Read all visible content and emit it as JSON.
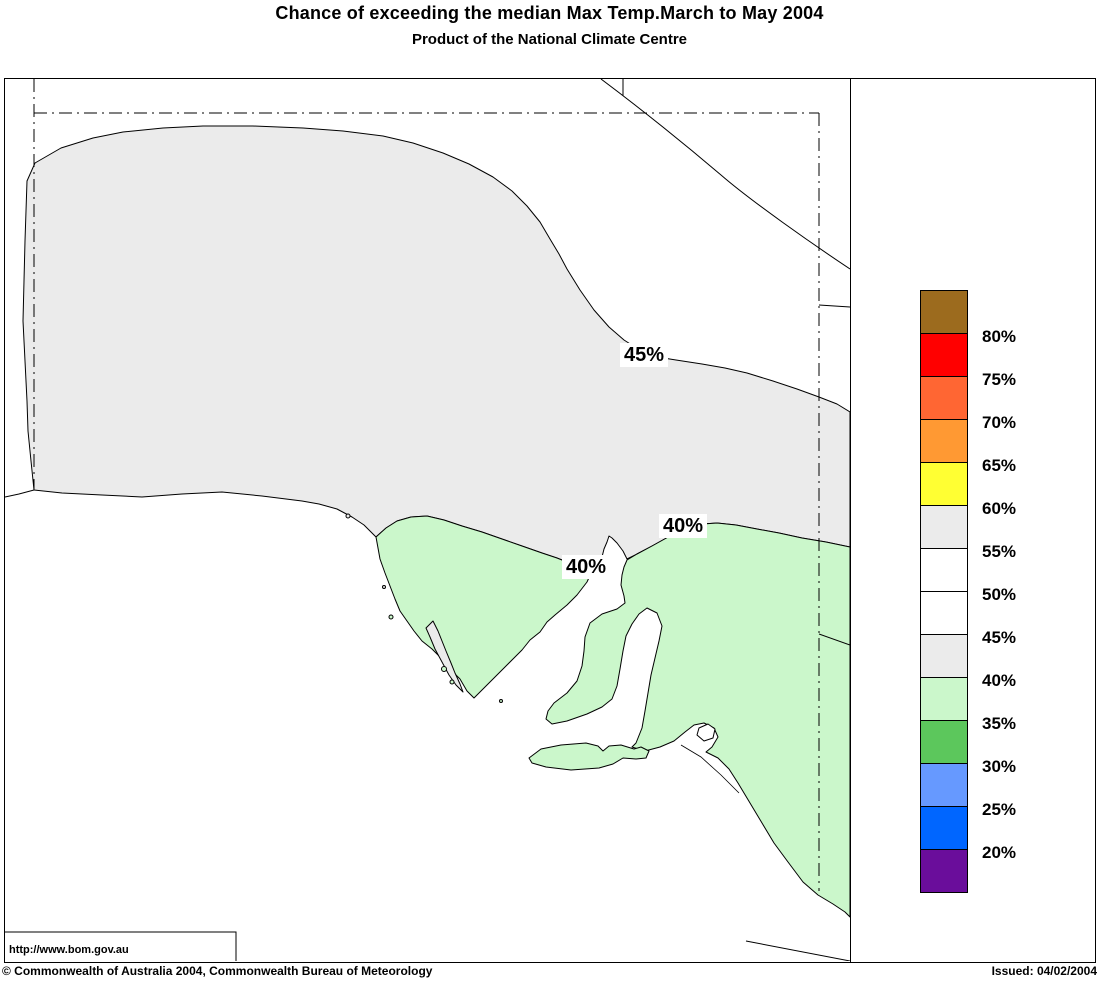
{
  "header": {
    "title": "Chance of exceeding the median Max Temp.March to May 2004",
    "subtitle": "Product of the National Climate Centre"
  },
  "map": {
    "contour_labels": {
      "label_45": "45%",
      "label_40_right": "40%",
      "label_40_left": "40%"
    },
    "url": "http://www.bom.gov.au",
    "region_colors": {
      "band_40_45": "#EBEBEB",
      "band_35_40": "#CBF7CB",
      "sea": "#FFFFFF",
      "coastline": "#000000"
    }
  },
  "legend": {
    "bands": [
      {
        "color": "#9C6B1E",
        "label": "80%"
      },
      {
        "color": "#FF0000",
        "label": "75%"
      },
      {
        "color": "#FF6633",
        "label": "70%"
      },
      {
        "color": "#FF9933",
        "label": "65%"
      },
      {
        "color": "#FFFF33",
        "label": "60%"
      },
      {
        "color": "#EBEBEB",
        "label": "55%"
      },
      {
        "color": "#FFFFFF",
        "label": "50%"
      },
      {
        "color": "#FFFFFF",
        "label": "45%"
      },
      {
        "color": "#EBEBEB",
        "label": "40%"
      },
      {
        "color": "#CBF7CB",
        "label": "35%"
      },
      {
        "color": "#5CC75C",
        "label": "30%"
      },
      {
        "color": "#6699FF",
        "label": "25%"
      },
      {
        "color": "#0066FF",
        "label": "20%"
      },
      {
        "color": "#6A0D9B",
        "label": ""
      }
    ]
  },
  "footer": {
    "copyright": "© Commonwealth of Australia 2004, Commonwealth Bureau of Meteorology",
    "issued": "Issued: 04/02/2004"
  }
}
